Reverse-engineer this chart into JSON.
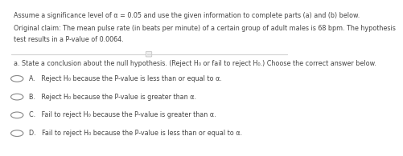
{
  "header_text": "Assume a significance level of α = 0.05 and use the given information to complete parts (a) and (b) below.",
  "claim_line1": "Original claim: The mean pulse rate (in beats per minute) of a certain group of adult males is 68 bpm. The hypothesis",
  "claim_line2": "test results in a P-value of 0.0064.",
  "question_text": "a. State a conclusion about the null hypothesis. (Reject H₀ or fail to reject H₀.) Choose the correct answer below.",
  "options": [
    "A.   Reject H₀ because the P-value is less than or equal to α.",
    "B.   Reject H₀ because the P-value is greater than α.",
    "C.   Fail to reject H₀ because the P-value is greater than α.",
    "D.   Fail to reject H₀ because the P-value is less than or equal to α."
  ],
  "font_size": 5.8,
  "question_font_size": 5.8,
  "text_color": "#444444",
  "radio_color": "#888888",
  "separator_color": "#cccccc",
  "bg_color": "#ffffff"
}
